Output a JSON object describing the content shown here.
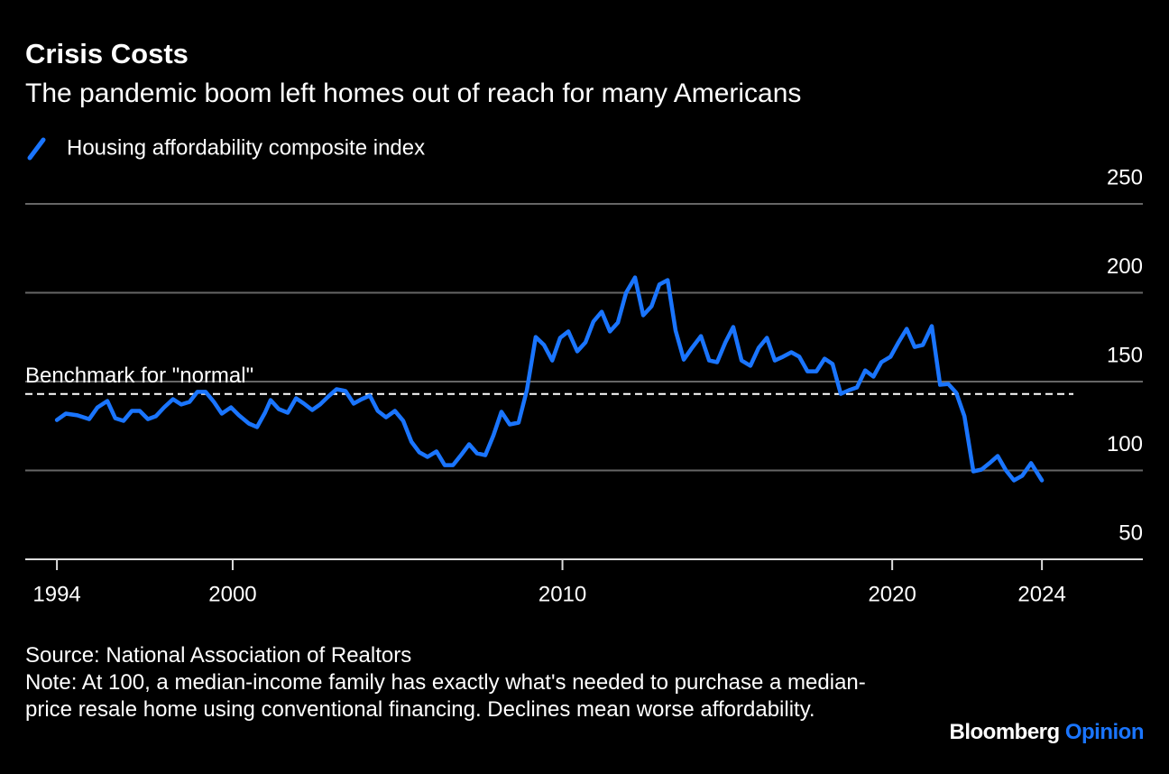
{
  "chart_data": {
    "type": "line",
    "title": "Crisis Costs",
    "subtitle": "The pandemic boom left homes out of reach for many Americans",
    "x": [
      1994.67,
      1994.94,
      1995.29,
      1995.65,
      1995.9,
      1996.2,
      1996.44,
      1996.69,
      1996.94,
      1997.18,
      1997.43,
      1997.67,
      1997.92,
      1998.19,
      1998.44,
      1998.69,
      1998.93,
      1999.18,
      1999.43,
      1999.67,
      1999.95,
      2000.19,
      2000.49,
      2000.74,
      2000.98,
      2001.15,
      2001.4,
      2001.67,
      2001.92,
      2002.16,
      2002.41,
      2002.65,
      2002.9,
      2003.15,
      2003.42,
      2003.67,
      2003.91,
      2004.16,
      2004.4,
      2004.65,
      2004.92,
      2005.17,
      2005.42,
      2005.66,
      2005.91,
      2006.18,
      2006.43,
      2006.68,
      2006.92,
      2007.17,
      2007.41,
      2007.66,
      2007.91,
      2008.15,
      2008.4,
      2008.67,
      2008.92,
      2009.19,
      2009.44,
      2009.69,
      2009.93,
      2010.18,
      2010.45,
      2010.7,
      2010.94,
      2011.19,
      2011.44,
      2011.68,
      2011.93,
      2012.2,
      2012.45,
      2012.7,
      2012.94,
      2013.19,
      2013.43,
      2013.68,
      2013.93,
      2014.2,
      2014.45,
      2014.69,
      2014.94,
      2015.18,
      2015.43,
      2015.7,
      2015.95,
      2016.2,
      2016.44,
      2016.69,
      2016.94,
      2017.18,
      2017.43,
      2017.7,
      2017.95,
      2018.19,
      2018.44,
      2018.69,
      2018.93,
      2019.18,
      2019.43,
      2019.67,
      2019.95,
      2020.19,
      2020.44,
      2020.68,
      2020.93,
      2021.2,
      2021.45,
      2021.7,
      2021.94,
      2022.19,
      2022.46,
      2022.71,
      2022.95,
      2023.2,
      2023.45,
      2023.69,
      2023.94,
      2024.21,
      2024.54
    ],
    "series": [
      {
        "name": "Housing affordability composite index",
        "color": "#1a75ff",
        "values": [
          128.4,
          132,
          131,
          128.9,
          135.5,
          139.1,
          129.4,
          127.9,
          133.5,
          133.5,
          128.9,
          130.5,
          135.5,
          140.1,
          137.1,
          138.6,
          144.2,
          144.2,
          138.6,
          132,
          135.5,
          131,
          126.4,
          124.4,
          132.5,
          139.6,
          134.5,
          132.5,
          140.6,
          137.6,
          134,
          137.1,
          141.6,
          145.7,
          144.7,
          137.6,
          140.1,
          142.1,
          133.5,
          129.9,
          133.5,
          127.9,
          116.2,
          110.2,
          107.6,
          110.7,
          103,
          103,
          108.6,
          114.7,
          109.6,
          108.6,
          119.8,
          133,
          125.9,
          126.9,
          145.2,
          175.1,
          170.6,
          161.9,
          174.6,
          178.2,
          167,
          172.1,
          183.8,
          189.3,
          178.2,
          183.2,
          200,
          208.6,
          187.3,
          192.4,
          204.6,
          207.1,
          178.7,
          162.4,
          169,
          175.6,
          161.9,
          160.9,
          172.1,
          180.7,
          161.9,
          158.9,
          169,
          174.6,
          161.9,
          164,
          166.5,
          164,
          155.8,
          155.8,
          162.9,
          159.9,
          143.1,
          145.2,
          146.7,
          156.3,
          152.8,
          160.9,
          164,
          172.1,
          179.7,
          169.5,
          170.6,
          181.2,
          148.2,
          148.7,
          143.7,
          130.5,
          99.5,
          100.5,
          104.1,
          108.1,
          100,
          94.4,
          97,
          104.1,
          94.4
        ]
      }
    ],
    "xlim": [
      1993.71,
      2027.6
    ],
    "xticks": [
      {
        "value": 1994.67,
        "label": "1994"
      },
      2000,
      2010,
      2020,
      {
        "value": 2024.54,
        "label": "2024"
      }
    ],
    "ylim": [
      50,
      250
    ],
    "yticks": [
      50,
      100,
      150,
      200,
      250
    ],
    "grid": true,
    "benchmark": {
      "value": 143,
      "label": "Benchmark for \"normal\""
    },
    "source": "Source: National Association of Realtors",
    "note": "Note: At 100, a median-income family has exactly what's needed to purchase a median-price resale home using conventional financing. Declines mean worse affordability.",
    "logo": {
      "name": "Bloomberg",
      "section": "Opinion"
    }
  }
}
